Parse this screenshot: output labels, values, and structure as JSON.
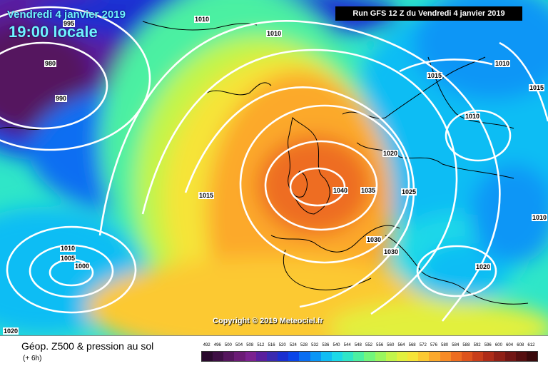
{
  "header": {
    "date": "Vendredi 4 janvier 2019",
    "time": "19:00 locale",
    "run": "Run GFS 12 Z du Vendredi 4 janvier 2019"
  },
  "copyright": "Copyright © 2019 Meteociel.fr",
  "legend": {
    "title": "Géop. Z500 & pression au sol",
    "subtitle": "(+ 6h)",
    "scale_values": [
      "492",
      "496",
      "500",
      "504",
      "508",
      "512",
      "516",
      "520",
      "524",
      "528",
      "532",
      "536",
      "540",
      "544",
      "548",
      "552",
      "556",
      "560",
      "564",
      "568",
      "572",
      "576",
      "580",
      "584",
      "588",
      "592",
      "596",
      "600",
      "604",
      "608",
      "612"
    ],
    "scale_colors": [
      "#2a0a2e",
      "#3e0f45",
      "#55155e",
      "#6b1b76",
      "#7b2190",
      "#5a1f9e",
      "#3a2ab0",
      "#1a2fd0",
      "#0a45e8",
      "#0a6ef2",
      "#0a96f6",
      "#10bdf4",
      "#1cd9e8",
      "#2fe6c8",
      "#4cf0a2",
      "#72f67c",
      "#9af65e",
      "#c2f54a",
      "#e2f03e",
      "#f6e438",
      "#fcc932",
      "#fca92c",
      "#f88b26",
      "#ee6d20",
      "#de541c",
      "#c83e1a",
      "#ae2c18",
      "#902016",
      "#721614",
      "#560f10",
      "#3a0a0c"
    ]
  },
  "isobar_labels": [
    "1010",
    "995",
    "1010",
    "980",
    "990",
    "1015",
    "1010",
    "1015",
    "1010",
    "1020",
    "1040",
    "1035",
    "1025",
    "1015",
    "1030",
    "1030",
    "1010",
    "1005",
    "1000",
    "1020",
    "1010",
    "1020"
  ],
  "colors": {
    "isobar": "#ffffff",
    "coastline": "#000000"
  }
}
